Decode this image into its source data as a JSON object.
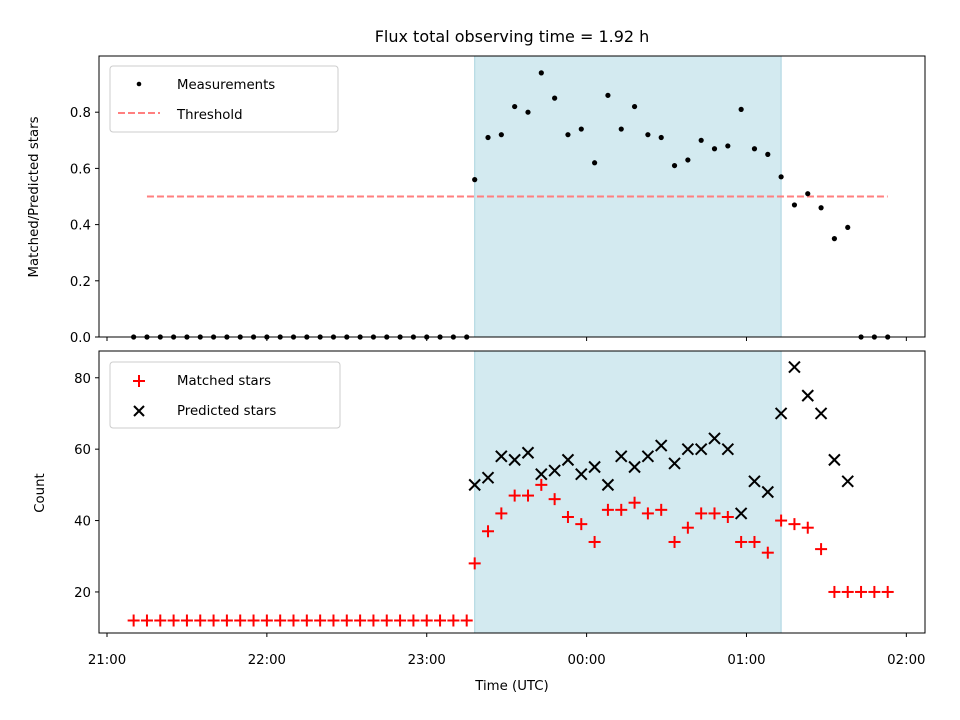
{
  "chart_data": [
    {
      "type": "scatter",
      "title": "Flux total observing time = 1.92 h",
      "xlabel": "",
      "ylabel": "Matched/Predicted stars",
      "ylim": [
        0,
        1.0
      ],
      "yticks": [
        0.0,
        0.2,
        0.4,
        0.6,
        0.8
      ],
      "ytick_labels": [
        "0.0",
        "0.2",
        "0.4",
        "0.6",
        "0.8"
      ],
      "legend": {
        "position": "top-left",
        "items": [
          "Measurements",
          "Threshold"
        ]
      },
      "shaded_interval": [
        "23:18",
        "01:13"
      ],
      "shade_color": "#d3eaf0",
      "threshold": {
        "name": "Threshold",
        "value": 0.5,
        "x_range": [
          "21:15",
          "23:25"
        ],
        "x_range2": [
          "23:25",
          "01:50"
        ],
        "color": "#ff7f7f"
      },
      "series": [
        {
          "name": "Measurements",
          "color": "#000000",
          "x": [
            "21:10",
            "21:15",
            "21:20",
            "21:25",
            "21:30",
            "21:35",
            "21:40",
            "21:45",
            "21:50",
            "21:55",
            "22:00",
            "22:05",
            "22:10",
            "22:15",
            "22:20",
            "22:25",
            "22:30",
            "22:35",
            "22:40",
            "22:45",
            "22:50",
            "22:55",
            "23:00",
            "23:05",
            "23:10",
            "23:15",
            "23:18",
            "23:23",
            "23:28",
            "23:33",
            "23:38",
            "23:43",
            "23:48",
            "23:53",
            "23:58",
            "00:03",
            "00:08",
            "00:13",
            "00:18",
            "00:23",
            "00:28",
            "00:33",
            "00:38",
            "00:43",
            "00:48",
            "00:53",
            "00:58",
            "01:03",
            "01:08",
            "01:13",
            "01:18",
            "01:23",
            "01:28",
            "01:33",
            "01:38",
            "01:43",
            "01:48",
            "01:53"
          ],
          "y": [
            0,
            0,
            0,
            0,
            0,
            0,
            0,
            0,
            0,
            0,
            0,
            0,
            0,
            0,
            0,
            0,
            0,
            0,
            0,
            0,
            0,
            0,
            0,
            0,
            0,
            0,
            0.56,
            0.71,
            0.72,
            0.82,
            0.8,
            0.94,
            0.85,
            0.72,
            0.74,
            0.62,
            0.86,
            0.74,
            0.82,
            0.72,
            0.71,
            0.61,
            0.63,
            0.7,
            0.67,
            0.68,
            0.81,
            0.67,
            0.65,
            0.57,
            0.47,
            0.51,
            0.46,
            0.35,
            0.39,
            0,
            0,
            0
          ]
        }
      ]
    },
    {
      "type": "scatter",
      "title": "",
      "xlabel": "Time (UTC)",
      "ylabel": "Count",
      "ylim": [
        8.5,
        87.5
      ],
      "yticks": [
        20,
        40,
        60,
        80
      ],
      "ytick_labels": [
        "20",
        "40",
        "60",
        "80"
      ],
      "xlim": [
        "20:57",
        "02:07"
      ],
      "xticks": [
        "21:00",
        "22:00",
        "23:00",
        "00:00",
        "01:00",
        "02:00"
      ],
      "legend": {
        "position": "top-left",
        "items": [
          "Matched stars",
          "Predicted stars"
        ]
      },
      "series": [
        {
          "name": "Matched stars",
          "marker": "plus",
          "color": "#ff0000",
          "x": [
            "21:10",
            "21:15",
            "21:20",
            "21:25",
            "21:30",
            "21:35",
            "21:40",
            "21:45",
            "21:50",
            "21:55",
            "22:00",
            "22:05",
            "22:10",
            "22:15",
            "22:20",
            "22:25",
            "22:30",
            "22:35",
            "22:40",
            "22:45",
            "22:50",
            "22:55",
            "23:00",
            "23:05",
            "23:10",
            "23:15",
            "23:18",
            "23:23",
            "23:28",
            "23:33",
            "23:38",
            "23:43",
            "23:48",
            "23:53",
            "23:58",
            "00:03",
            "00:08",
            "00:13",
            "00:18",
            "00:23",
            "00:28",
            "00:33",
            "00:38",
            "00:43",
            "00:48",
            "00:53",
            "00:58",
            "01:03",
            "01:08",
            "01:13",
            "01:18",
            "01:23",
            "01:28",
            "01:33",
            "01:38",
            "01:43",
            "01:48",
            "01:53"
          ],
          "y": [
            12,
            12,
            12,
            12,
            12,
            12,
            12,
            12,
            12,
            12,
            12,
            12,
            12,
            12,
            12,
            12,
            12,
            12,
            12,
            12,
            12,
            12,
            12,
            12,
            12,
            12,
            28,
            37,
            42,
            47,
            47,
            50,
            46,
            41,
            39,
            34,
            43,
            43,
            45,
            42,
            43,
            34,
            38,
            42,
            42,
            41,
            34,
            34,
            31,
            40,
            39,
            38,
            32,
            20,
            20,
            20,
            20,
            20
          ]
        },
        {
          "name": "Predicted stars",
          "marker": "x",
          "color": "#000000",
          "x": [
            "23:18",
            "23:23",
            "23:28",
            "23:33",
            "23:38",
            "23:43",
            "23:48",
            "23:53",
            "23:58",
            "00:03",
            "00:08",
            "00:13",
            "00:18",
            "00:23",
            "00:28",
            "00:33",
            "00:38",
            "00:43",
            "00:48",
            "00:53",
            "00:58",
            "01:03",
            "01:08",
            "01:13",
            "01:18",
            "01:23",
            "01:28",
            "01:33",
            "01:38"
          ],
          "y": [
            50,
            52,
            58,
            57,
            59,
            53,
            54,
            57,
            53,
            55,
            50,
            58,
            55,
            58,
            61,
            56,
            60,
            60,
            63,
            60,
            42,
            51,
            48,
            70,
            83,
            75,
            70,
            57,
            51
          ]
        }
      ]
    }
  ]
}
